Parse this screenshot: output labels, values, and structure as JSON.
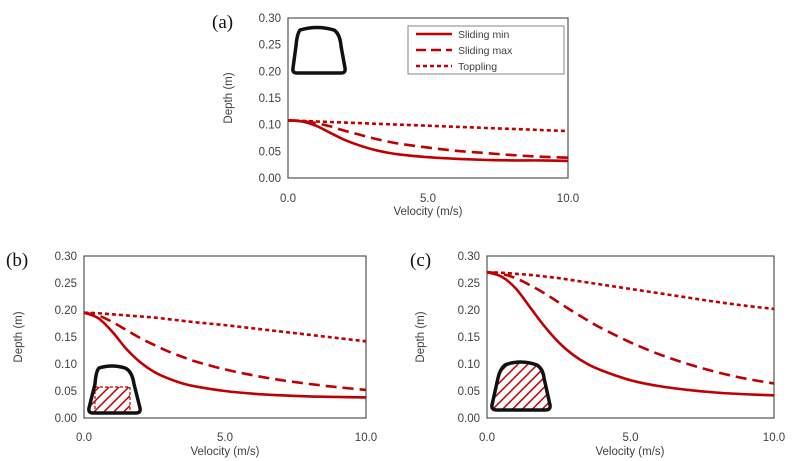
{
  "figure": {
    "legend": {
      "placement": "top-right of panel (a)",
      "entries": [
        {
          "name": "Sliding min",
          "style": "solid"
        },
        {
          "name": "Sliding max",
          "style": "long-dash"
        },
        {
          "name": "Toppling",
          "style": "short-dash"
        }
      ]
    },
    "series_color": "#C00000"
  },
  "chart_data": [
    {
      "panel": "(a)",
      "type": "line",
      "xlabel": "Velocity (m/s)",
      "ylabel": "Depth (m)",
      "xlim": [
        0,
        10
      ],
      "ylim": [
        0,
        0.3
      ],
      "xticks": [
        "0.0",
        "5.0",
        "10.0"
      ],
      "yticks": [
        "0.00",
        "0.05",
        "0.10",
        "0.15",
        "0.20",
        "0.25",
        "0.30"
      ],
      "grid": false,
      "inset_icon": "vehicle-outline",
      "x": [
        0,
        0.5,
        1,
        1.5,
        2,
        2.5,
        3,
        3.5,
        4,
        5,
        6,
        7,
        8,
        9,
        10
      ],
      "series": [
        {
          "name": "Sliding min",
          "values": [
            0.108,
            0.106,
            0.098,
            0.085,
            0.072,
            0.062,
            0.054,
            0.048,
            0.044,
            0.039,
            0.036,
            0.034,
            0.033,
            0.033,
            0.032
          ]
        },
        {
          "name": "Sliding max",
          "values": [
            0.108,
            0.107,
            0.103,
            0.097,
            0.089,
            0.082,
            0.075,
            0.069,
            0.064,
            0.057,
            0.051,
            0.047,
            0.043,
            0.04,
            0.038
          ]
        },
        {
          "name": "Toppling",
          "values": [
            0.108,
            0.107,
            0.106,
            0.105,
            0.104,
            0.103,
            0.102,
            0.101,
            0.1,
            0.098,
            0.096,
            0.094,
            0.092,
            0.09,
            0.088
          ]
        }
      ]
    },
    {
      "panel": "(b)",
      "type": "line",
      "xlabel": "Velocity (m/s)",
      "ylabel": "Depth (m)",
      "xlim": [
        0,
        10
      ],
      "ylim": [
        0,
        0.3
      ],
      "xticks": [
        "0.0",
        "5.0",
        "10.0"
      ],
      "yticks": [
        "0.00",
        "0.05",
        "0.10",
        "0.15",
        "0.20",
        "0.25",
        "0.30"
      ],
      "grid": false,
      "inset_icon": "vehicle-lower-hatched",
      "x": [
        0,
        0.5,
        1,
        1.5,
        2,
        2.5,
        3,
        3.5,
        4,
        5,
        6,
        7,
        8,
        9,
        10
      ],
      "series": [
        {
          "name": "Sliding min",
          "values": [
            0.195,
            0.185,
            0.16,
            0.128,
            0.103,
            0.085,
            0.073,
            0.064,
            0.058,
            0.05,
            0.045,
            0.042,
            0.04,
            0.039,
            0.038
          ]
        },
        {
          "name": "Sliding max",
          "values": [
            0.195,
            0.19,
            0.178,
            0.163,
            0.148,
            0.135,
            0.123,
            0.113,
            0.104,
            0.09,
            0.079,
            0.07,
            0.063,
            0.057,
            0.052
          ]
        },
        {
          "name": "Toppling",
          "values": [
            0.195,
            0.194,
            0.192,
            0.19,
            0.188,
            0.186,
            0.183,
            0.18,
            0.177,
            0.172,
            0.166,
            0.16,
            0.154,
            0.148,
            0.142
          ]
        }
      ]
    },
    {
      "panel": "(c)",
      "type": "line",
      "xlabel": "Velocity (m/s)",
      "ylabel": "Depth (m)",
      "xlim": [
        0,
        10
      ],
      "ylim": [
        0,
        0.3
      ],
      "xticks": [
        "0.0",
        "5.0",
        "10.0"
      ],
      "yticks": [
        "0.00",
        "0.05",
        "0.10",
        "0.15",
        "0.20",
        "0.25",
        "0.30"
      ],
      "grid": false,
      "inset_icon": "vehicle-fully-hatched",
      "x": [
        0,
        0.5,
        1,
        1.5,
        2,
        2.5,
        3,
        3.5,
        4,
        5,
        6,
        7,
        8,
        9,
        10
      ],
      "series": [
        {
          "name": "Sliding min",
          "values": [
            0.27,
            0.262,
            0.24,
            0.205,
            0.17,
            0.14,
            0.117,
            0.1,
            0.088,
            0.07,
            0.059,
            0.052,
            0.047,
            0.044,
            0.042
          ]
        },
        {
          "name": "Sliding max",
          "values": [
            0.27,
            0.267,
            0.259,
            0.246,
            0.231,
            0.214,
            0.197,
            0.181,
            0.166,
            0.14,
            0.118,
            0.1,
            0.085,
            0.073,
            0.064
          ]
        },
        {
          "name": "Toppling",
          "values": [
            0.27,
            0.269,
            0.267,
            0.265,
            0.262,
            0.259,
            0.255,
            0.251,
            0.247,
            0.239,
            0.231,
            0.223,
            0.215,
            0.208,
            0.202
          ]
        }
      ]
    }
  ]
}
